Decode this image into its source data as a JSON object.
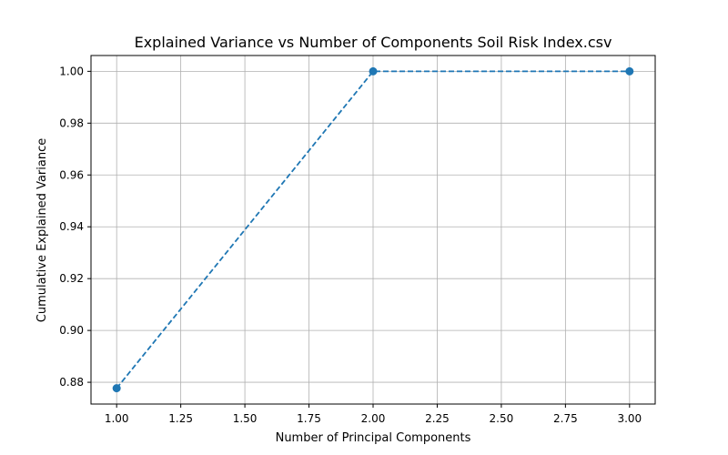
{
  "chart_data": {
    "type": "line",
    "title": "Explained Variance vs Number of Components Soil Risk Index.csv",
    "xlabel": "Number of Principal Components",
    "ylabel": "Cumulative Explained Variance",
    "x": [
      1,
      2,
      3
    ],
    "series": [
      {
        "values": [
          0.8777,
          1.0,
          1.0
        ],
        "color": "#1f77b4",
        "line_style": "dashed",
        "marker": "circle"
      }
    ],
    "xlim": [
      0.9,
      3.1
    ],
    "ylim": [
      0.8716,
      1.0061
    ],
    "x_ticks": [
      "1.00",
      "1.25",
      "1.50",
      "1.75",
      "2.00",
      "2.25",
      "2.50",
      "2.75",
      "3.00"
    ],
    "y_ticks": [
      "0.88",
      "0.90",
      "0.92",
      "0.94",
      "0.96",
      "0.98",
      "1.00"
    ],
    "grid": true,
    "legend": "none"
  }
}
